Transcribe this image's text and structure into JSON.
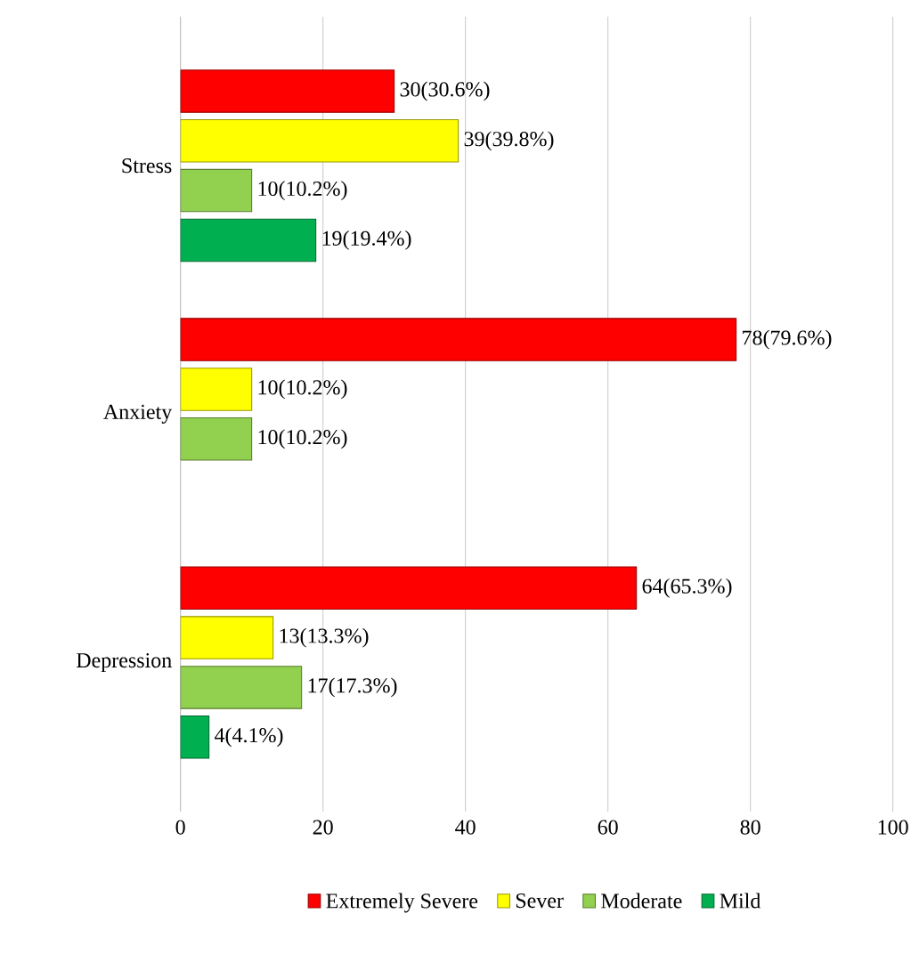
{
  "chart_data": {
    "type": "bar",
    "orientation": "horizontal",
    "categories": [
      "Stress",
      "Anxiety",
      "Depression"
    ],
    "series": [
      {
        "name": "Extremely Severe",
        "color": "#ff0000",
        "values": [
          30,
          78,
          64
        ],
        "value_labels": [
          "30(30.6%)",
          "78(79.6%)",
          "64(65.3%)"
        ]
      },
      {
        "name": "Sever",
        "color": "#ffff00",
        "values": [
          39,
          10,
          13
        ],
        "value_labels": [
          "39(39.8%)",
          "10(10.2%)",
          "13(13.3%)"
        ]
      },
      {
        "name": "Moderate",
        "color": "#92d050",
        "values": [
          10,
          10,
          17
        ],
        "value_labels": [
          "10(10.2%)",
          "10(10.2%)",
          "17(17.3%)"
        ]
      },
      {
        "name": "Mild",
        "color": "#00b050",
        "values": [
          19,
          null,
          4
        ],
        "value_labels": [
          "19(19.4%)",
          null,
          "4(4.1%)"
        ]
      }
    ],
    "xlim": [
      0,
      100
    ],
    "xticks": [
      0,
      20,
      40,
      60,
      80,
      100
    ],
    "grid": "x",
    "legend": "bottom"
  }
}
